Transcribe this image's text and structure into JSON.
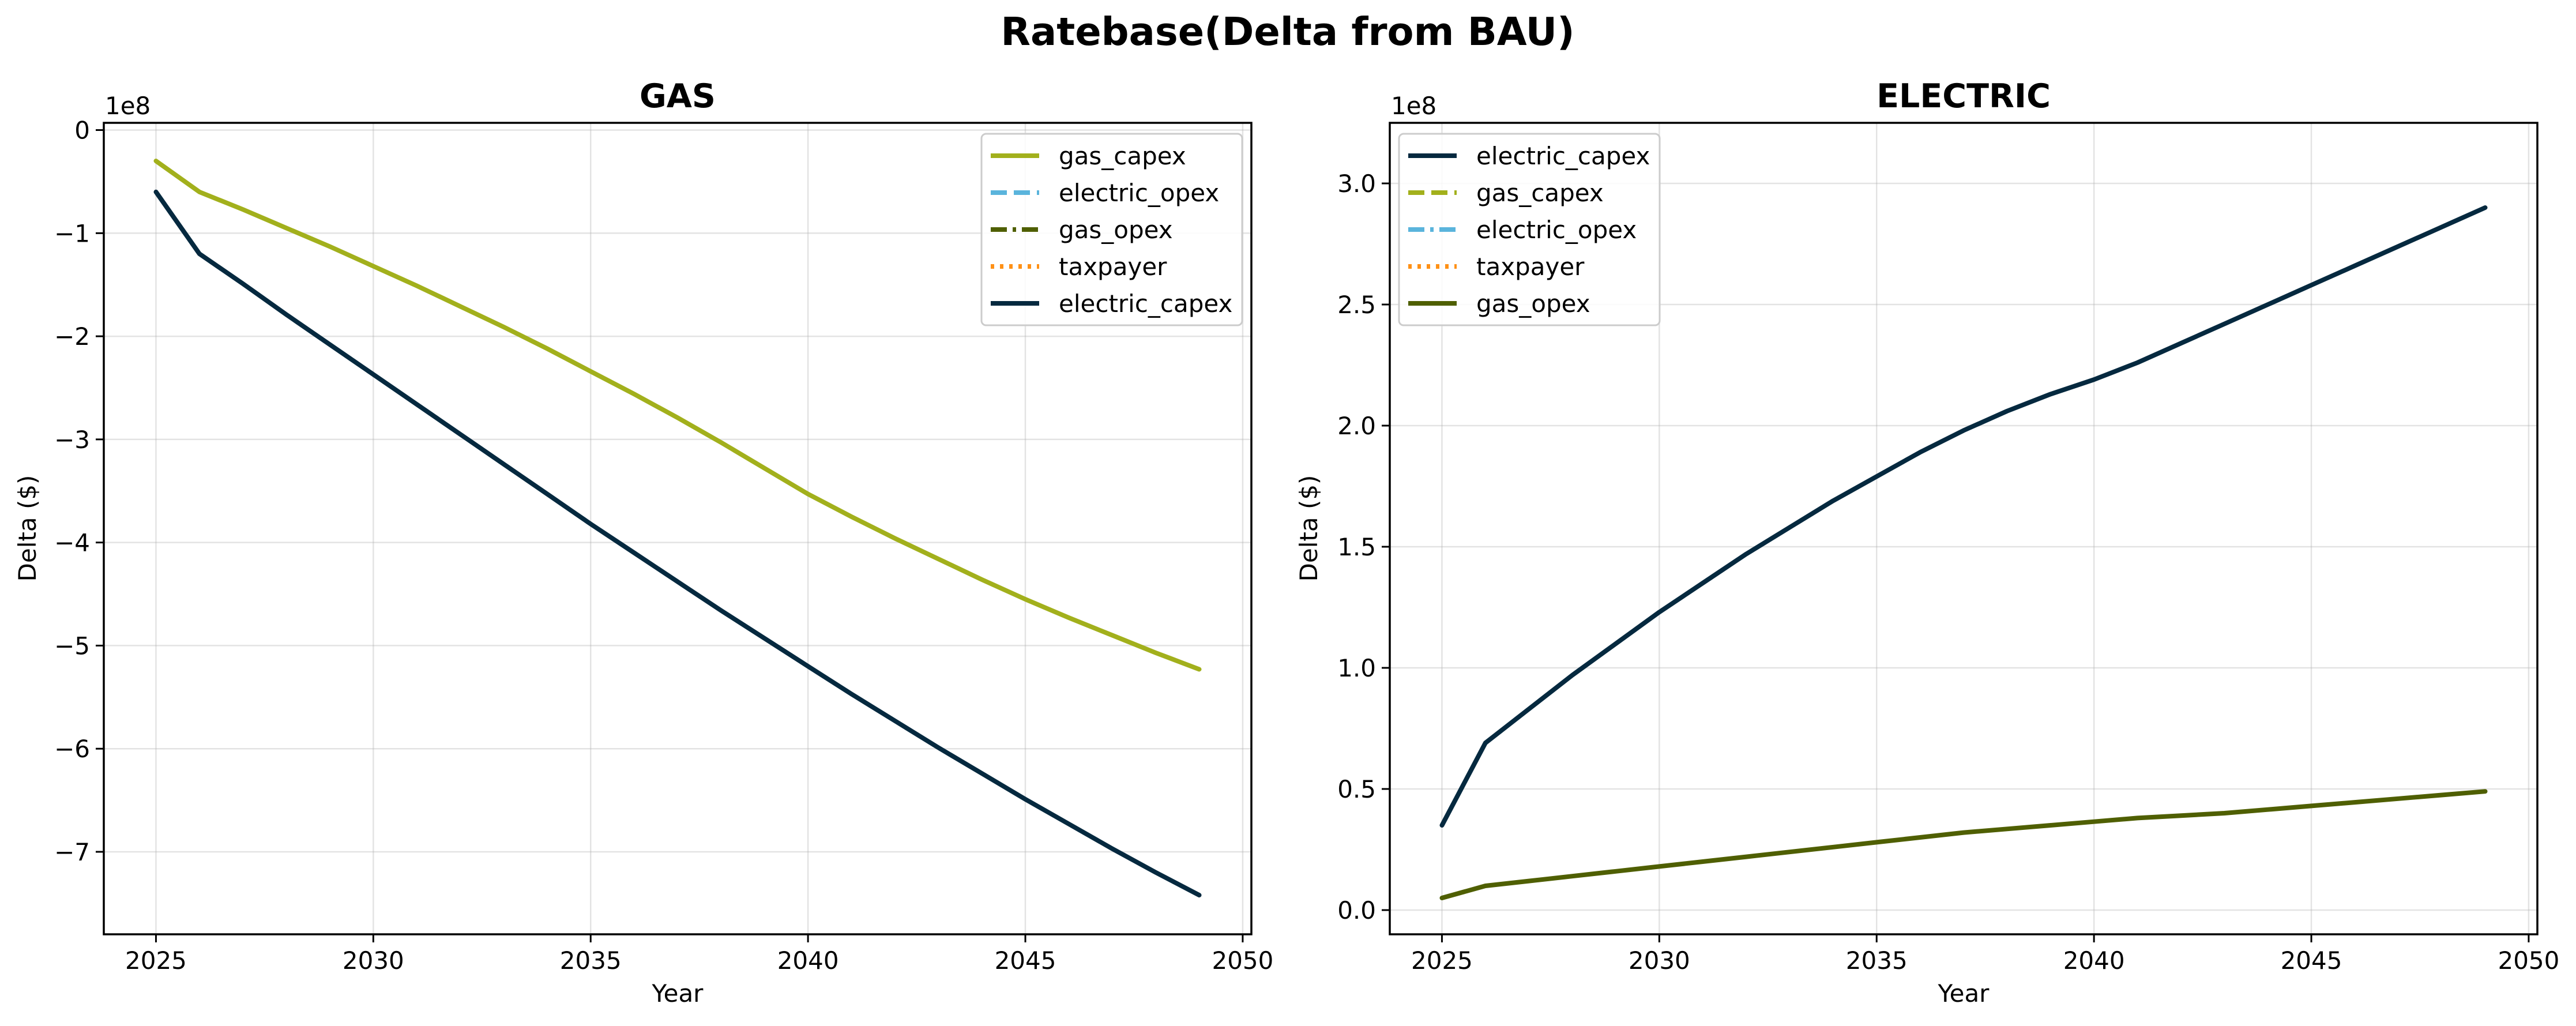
{
  "title": "Ratebase(Delta from BAU)",
  "colors": {
    "gas_capex": "#a2b01c",
    "electric_opex": "#5ab4dc",
    "gas_opex": "#4f5f02",
    "taxpayer": "#ff9116",
    "electric_capex": "#05293f"
  },
  "chart_data": [
    {
      "type": "line",
      "title": "GAS",
      "xlabel": "Year",
      "ylabel": "Delta ($)",
      "y_offset_label": "1e8",
      "xlim": [
        2023.8,
        2050.2
      ],
      "ylim": [
        -7.8,
        0.07
      ],
      "x_ticks": [
        2025,
        2030,
        2035,
        2040,
        2045,
        2050
      ],
      "y_ticks": [
        0,
        -1,
        -2,
        -3,
        -4,
        -5,
        -6,
        -7
      ],
      "y_tick_labels": [
        "0",
        "−1",
        "−2",
        "−3",
        "−4",
        "−5",
        "−6",
        "−7"
      ],
      "grid": true,
      "legend_position": "top-right",
      "legend": [
        {
          "name": "gas_capex",
          "style": "solid",
          "color": "#a2b01c"
        },
        {
          "name": "electric_opex",
          "style": "dashed",
          "color": "#5ab4dc"
        },
        {
          "name": "gas_opex",
          "style": "dashdot",
          "color": "#4f5f02"
        },
        {
          "name": "taxpayer",
          "style": "dotted",
          "color": "#ff9116"
        },
        {
          "name": "electric_capex",
          "style": "solid",
          "color": "#05293f"
        }
      ],
      "series": [
        {
          "name": "gas_capex",
          "color": "#a2b01c",
          "style": "solid",
          "x": [
            2025,
            2026,
            2027,
            2028,
            2029,
            2030,
            2031,
            2032,
            2033,
            2034,
            2035,
            2036,
            2037,
            2038,
            2039,
            2040,
            2041,
            2042,
            2043,
            2044,
            2045,
            2046,
            2047,
            2048,
            2049
          ],
          "y": [
            -0.3,
            -0.6,
            -0.77,
            -0.95,
            -1.13,
            -1.32,
            -1.51,
            -1.71,
            -1.91,
            -2.12,
            -2.34,
            -2.56,
            -2.79,
            -3.03,
            -3.28,
            -3.53,
            -3.75,
            -3.96,
            -4.16,
            -4.36,
            -4.55,
            -4.73,
            -4.9,
            -5.07,
            -5.23
          ]
        },
        {
          "name": "electric_capex",
          "color": "#05293f",
          "style": "solid",
          "x": [
            2025,
            2026,
            2027,
            2028,
            2029,
            2030,
            2031,
            2032,
            2033,
            2034,
            2035,
            2036,
            2037,
            2038,
            2039,
            2040,
            2041,
            2042,
            2043,
            2044,
            2045,
            2046,
            2047,
            2048,
            2049
          ],
          "y": [
            -0.6,
            -1.2,
            -1.49,
            -1.79,
            -2.08,
            -2.37,
            -2.66,
            -2.95,
            -3.24,
            -3.53,
            -3.82,
            -4.1,
            -4.38,
            -4.66,
            -4.93,
            -5.2,
            -5.47,
            -5.73,
            -5.99,
            -6.24,
            -6.49,
            -6.73,
            -6.97,
            -7.2,
            -7.42
          ]
        }
      ]
    },
    {
      "type": "line",
      "title": "ELECTRIC",
      "xlabel": "Year",
      "ylabel": "Delta ($)",
      "y_offset_label": "1e8",
      "xlim": [
        2023.8,
        2050.2
      ],
      "ylim": [
        -0.1,
        3.25
      ],
      "x_ticks": [
        2025,
        2030,
        2035,
        2040,
        2045,
        2050
      ],
      "y_ticks": [
        0,
        0.5,
        1,
        1.5,
        2,
        2.5,
        3
      ],
      "y_tick_labels": [
        "0.0",
        "0.5",
        "1.0",
        "1.5",
        "2.0",
        "2.5",
        "3.0"
      ],
      "grid": true,
      "legend_position": "top-left",
      "legend": [
        {
          "name": "electric_capex",
          "style": "solid",
          "color": "#05293f"
        },
        {
          "name": "gas_capex",
          "style": "dashed",
          "color": "#a2b01c"
        },
        {
          "name": "electric_opex",
          "style": "dashdot",
          "color": "#5ab4dc"
        },
        {
          "name": "taxpayer",
          "style": "dotted",
          "color": "#ff9116"
        },
        {
          "name": "gas_opex",
          "style": "solid",
          "color": "#4f5f02"
        }
      ],
      "series": [
        {
          "name": "electric_capex",
          "color": "#05293f",
          "style": "solid",
          "x": [
            2025,
            2026,
            2027,
            2028,
            2029,
            2030,
            2031,
            2032,
            2033,
            2034,
            2035,
            2036,
            2037,
            2038,
            2039,
            2040,
            2041,
            2042,
            2043,
            2044,
            2045,
            2046,
            2047,
            2048,
            2049
          ],
          "y": [
            0.35,
            0.69,
            0.83,
            0.97,
            1.1,
            1.23,
            1.35,
            1.47,
            1.58,
            1.69,
            1.79,
            1.89,
            1.98,
            2.06,
            2.13,
            2.19,
            2.26,
            2.34,
            2.42,
            2.5,
            2.58,
            2.66,
            2.74,
            2.82,
            2.9
          ]
        },
        {
          "name": "gas_opex",
          "color": "#4f5f02",
          "style": "solid",
          "x": [
            2025,
            2026,
            2027,
            2028,
            2029,
            2030,
            2031,
            2032,
            2033,
            2034,
            2035,
            2036,
            2037,
            2038,
            2039,
            2040,
            2041,
            2042,
            2043,
            2044,
            2045,
            2046,
            2047,
            2048,
            2049
          ],
          "y": [
            0.05,
            0.1,
            0.12,
            0.14,
            0.16,
            0.18,
            0.2,
            0.22,
            0.24,
            0.26,
            0.28,
            0.3,
            0.32,
            0.335,
            0.35,
            0.365,
            0.38,
            0.39,
            0.4,
            0.415,
            0.43,
            0.445,
            0.46,
            0.475,
            0.49
          ]
        }
      ]
    }
  ]
}
